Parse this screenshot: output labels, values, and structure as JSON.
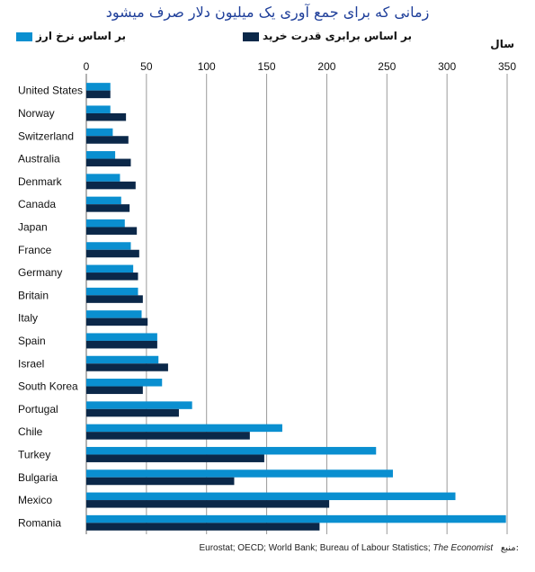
{
  "chart_data": {
    "type": "bar",
    "orientation": "horizontal",
    "title": "زمانی که برای جمع آوری یک میلیون دلار صرف میشود",
    "xlabel": "سال",
    "ylabel": "",
    "xlim": [
      0,
      350
    ],
    "ticks": [
      0,
      50,
      100,
      150,
      200,
      250,
      300,
      350
    ],
    "grid": true,
    "legend_position": "top",
    "categories": [
      "United States",
      "Norway",
      "Switzerland",
      "Australia",
      "Denmark",
      "Canada",
      "Japan",
      "France",
      "Germany",
      "Britain",
      "Italy",
      "Spain",
      "Israel",
      "South Korea",
      "Portugal",
      "Chile",
      "Turkey",
      "Bulgaria",
      "Mexico",
      "Romania"
    ],
    "series": [
      {
        "name": "بر اساس نرخ ارز",
        "color": "#0a8fd0",
        "values": [
          20,
          20,
          22,
          24,
          28,
          29,
          32,
          37,
          39,
          43,
          46,
          59,
          60,
          63,
          88,
          163,
          241,
          255,
          307,
          349
        ]
      },
      {
        "name": "بر اساس برابری قدرت خرید",
        "color": "#0b2849",
        "values": [
          20,
          33,
          35,
          37,
          41,
          36,
          42,
          44,
          43,
          47,
          51,
          59,
          68,
          47,
          77,
          136,
          148,
          123,
          202,
          194
        ]
      }
    ],
    "source_label": "منبع:",
    "source": "Eurostat; OECD; World Bank; Bureau of Labour Statistics;",
    "source_italic": "The Economist"
  }
}
